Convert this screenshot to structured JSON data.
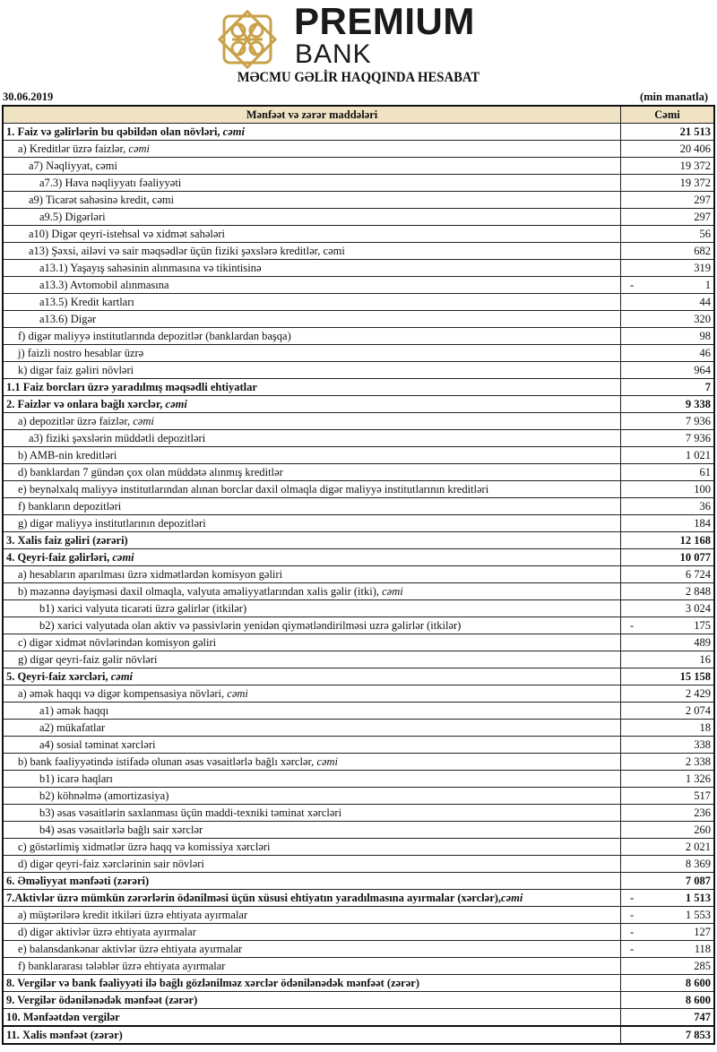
{
  "logo": {
    "line1": "PREMIUM",
    "line2": "BANK",
    "gold": "#c9a14a"
  },
  "title": "MƏCMU GƏLİR HAQQINDA HESABAT",
  "date": "30.06.2019",
  "unit": "(min manatla)",
  "header": {
    "item": "Mənfəət və zərər maddələri",
    "total": "Cəmi"
  },
  "rows": [
    {
      "label": "1. Faiz və gəlirlərin bu qəbildən olan növləri, ",
      "em": "cəmi",
      "value": "21 513",
      "level": 0,
      "bold": true
    },
    {
      "label": "a) Kreditlər üzrə faizlər, ",
      "em": "cəmi",
      "value": "20 406",
      "level": 1
    },
    {
      "label": "a7) Nəqliyyat, cəmi",
      "value": "19 372",
      "level": 2
    },
    {
      "label": "a7.3) Hava nəqliyyatı fəaliyyəti",
      "value": "19 372",
      "level": 3
    },
    {
      "label": "a9) Ticarət sahəsinə kredit, cəmi",
      "value": "297",
      "level": 2
    },
    {
      "label": "a9.5) Digərləri",
      "value": "297",
      "level": 3
    },
    {
      "label": "a10) Digər qeyri-istehsal və xidmət sahələri",
      "value": "56",
      "level": 2
    },
    {
      "label": "a13) Şəxsi, ailəvi və sair məqsədlər üçün fiziki şəxslərə kreditlər, cəmi",
      "value": "682",
      "level": 2
    },
    {
      "label": "a13.1) Yaşayış sahəsinin alınmasına və tikintisinə",
      "value": "319",
      "level": 3
    },
    {
      "label": "a13.3) Avtomobil alınmasına",
      "value": "1",
      "sign": "-",
      "level": 3
    },
    {
      "label": "a13.5) Kredit kartları",
      "value": "44",
      "level": 3
    },
    {
      "label": "a13.6) Digər",
      "value": "320",
      "level": 3
    },
    {
      "label": "f) digər maliyyə institutlarında depozitlər (banklardan başqa)",
      "value": "98",
      "level": 1
    },
    {
      "label": "j) faizli nostro hesablar üzrə",
      "value": "46",
      "level": 1
    },
    {
      "label": "k) digər faiz gəliri növləri",
      "value": "964",
      "level": 1
    },
    {
      "label": "1.1 Faiz borcları üzrə yaradılmış məqsədli ehtiyatlar",
      "value": "7",
      "level": 0,
      "bold": true
    },
    {
      "label": "2. Faizlər və onlara bağlı xərclər, ",
      "em": "cəmi",
      "value": "9 338",
      "level": 0,
      "bold": true
    },
    {
      "label": "a) depozitlər üzrə faizlər, ",
      "em": "cəmi",
      "value": "7 936",
      "level": 1
    },
    {
      "label": "a3) fiziki şəxslərin müddətli depozitləri",
      "value": "7 936",
      "level": 2
    },
    {
      "label": "b) AMB-nin kreditləri",
      "value": "1 021",
      "level": 1
    },
    {
      "label": "d) banklardan 7 gündən çox olan müddətə alınmış kreditlər",
      "value": "61",
      "level": 1
    },
    {
      "label": "e) beynəlxalq maliyyə institutlarından alınan borclar daxil olmaqla digər maliyyə institutlarının kreditləri",
      "value": "100",
      "level": 1
    },
    {
      "label": "f) bankların depozitləri",
      "value": "36",
      "level": 1
    },
    {
      "label": "g) digər maliyyə institutlarının depozitləri",
      "value": "184",
      "level": 1
    },
    {
      "label": "3. Xalis faiz gəliri (zərəri)",
      "value": "12 168",
      "level": 0,
      "bold": true
    },
    {
      "label": "4. Qeyri-faiz gəlirləri, ",
      "em": "cəmi",
      "value": "10 077",
      "level": 0,
      "bold": true
    },
    {
      "label": "a) hesabların aparılması üzrə xidmətlərdən komisyon gəliri",
      "value": "6 724",
      "level": 1
    },
    {
      "label": "b) məzənnə dəyişməsi daxil olmaqla, valyuta əməliyyatlarından xalis gəlir (itki), ",
      "em": "cəmi",
      "value": "2 848",
      "level": 1
    },
    {
      "label": "b1) xarici valyuta ticarəti üzrə gəlirlər (itkilər)",
      "value": "3 024",
      "level": 3
    },
    {
      "label": "b2) xarici valyutada olan aktiv və passivlərin yenidən qiymətləndirilməsi uzrə gəlirlər (itkilər)",
      "value": "175",
      "sign": "-",
      "level": 3
    },
    {
      "label": "c) digər xidmət növlərindən komisyon gəliri",
      "value": "489",
      "level": 1
    },
    {
      "label": "g) digər qeyri-faiz gəlir növləri",
      "value": "16",
      "level": 1
    },
    {
      "label": "5. Qeyri-faiz xərcləri, ",
      "em": "cəmi",
      "value": "15 158",
      "level": 0,
      "bold": true
    },
    {
      "label": "a) əmək haqqı və digər kompensasiya növləri, ",
      "em": "cəmi",
      "value": "2 429",
      "level": 1
    },
    {
      "label": "a1) əmək haqqı",
      "value": "2 074",
      "level": 3
    },
    {
      "label": "a2) mükafatlar",
      "value": "18",
      "level": 3
    },
    {
      "label": "a4) sosial təminat xərcləri",
      "value": "338",
      "level": 3
    },
    {
      "label": "b) bank fəaliyyətində istifadə olunan əsas vəsaitlərlə bağlı xərclər, ",
      "em": "cəmi",
      "value": "2 338",
      "level": 1
    },
    {
      "label": "b1) icarə haqları",
      "value": "1 326",
      "level": 3
    },
    {
      "label": "b2) köhnəlmə (amortizasiya)",
      "value": "517",
      "level": 3
    },
    {
      "label": "b3) əsas vəsaitlərin saxlanması üçün maddi-texniki təminat xərcləri",
      "value": "236",
      "level": 3
    },
    {
      "label": "b4) əsas vəsaitlərlə bağlı sair xərclər",
      "value": "260",
      "level": 3
    },
    {
      "label": "c) göstərlimiş xidmətlər üzrə haqq və komissiya xərcləri",
      "value": "2 021",
      "level": 1
    },
    {
      "label": "d) digər qeyri-faiz xərclərinin sair növləri",
      "value": "8 369",
      "level": 1
    },
    {
      "label": "6. Əməliyyat mənfəəti (zərəri)",
      "value": "7 087",
      "level": 0,
      "bold": true
    },
    {
      "label": "7.Aktivlər üzrə mümkün zərərlərin ödənilməsi üçün xüsusi ehtiyatın yaradılmasına ayırmalar (xərclər),",
      "em": "cəmi",
      "value": "1 513",
      "sign": "-",
      "level": 0,
      "bold": true
    },
    {
      "label": "a) müştərilərə kredit itkiləri üzrə ehtiyata ayırmalar",
      "value": "1 553",
      "sign": "-",
      "level": 1
    },
    {
      "label": "d) digər aktivlər üzrə ehtiyata ayırmalar",
      "value": "127",
      "sign": "-",
      "level": 1
    },
    {
      "label": "e) balansdankənar aktivlər üzrə ehtiyata ayırmalar",
      "value": "118",
      "sign": "-",
      "level": 1
    },
    {
      "label": "f) banklararası tələblər üzrə ehtiyata ayırmalar",
      "value": "285",
      "level": 1
    },
    {
      "label": "8. Vergilər və bank fəaliyyəti ilə bağlı gözlənilməz xərclər ödənilənədək mənfəət (zərər)",
      "value": "8 600",
      "level": 0,
      "bold": true
    },
    {
      "label": "9. Vergilər ödənilənədək mənfəət (zərər)",
      "value": "8 600",
      "level": 0,
      "bold": true
    },
    {
      "label": "10. Mənfəətdən vergilər",
      "value": "747",
      "level": 0,
      "bold": true
    },
    {
      "label": "11. Xalis mənfəət (zərər)",
      "value": "7 853",
      "level": 0,
      "bold": true
    }
  ]
}
